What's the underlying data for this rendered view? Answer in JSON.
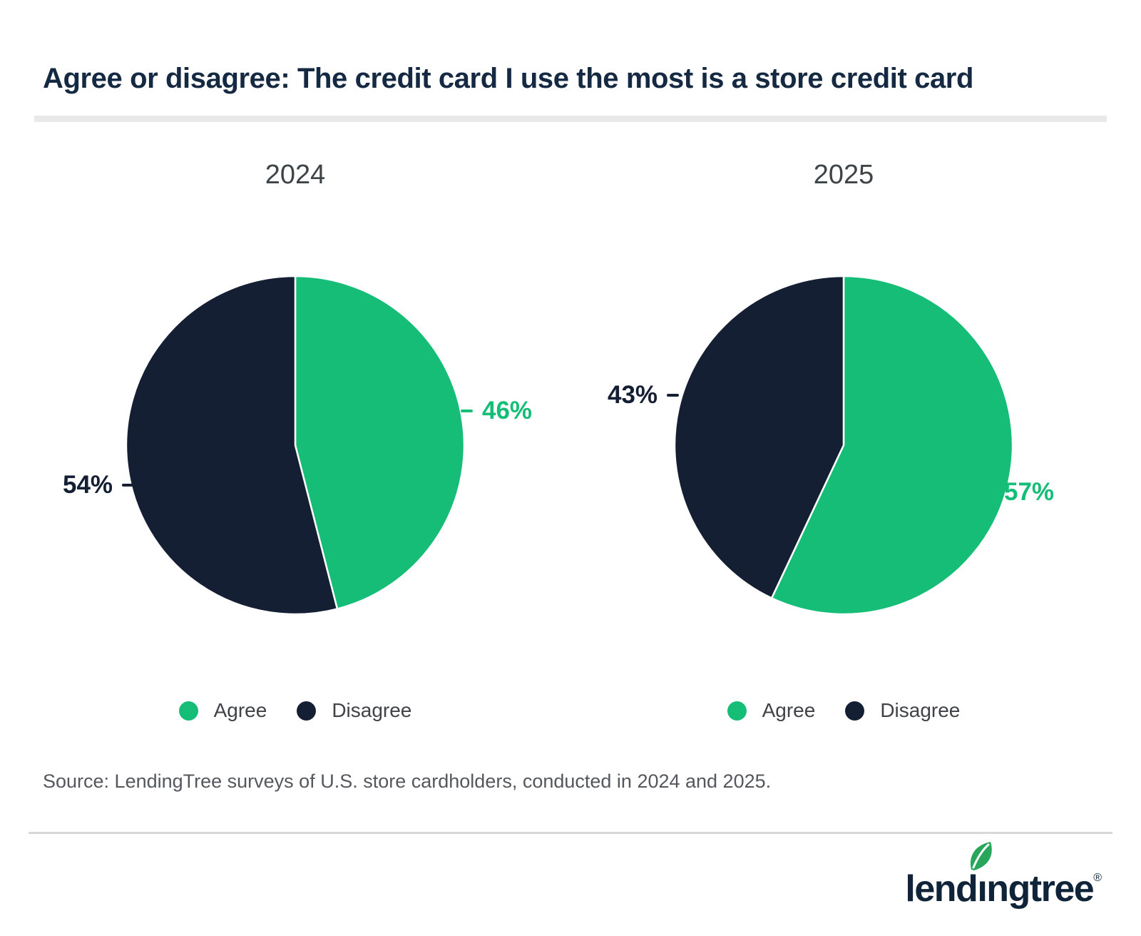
{
  "title": "Agree or disagree: The credit card I use the most is a store credit card",
  "colors": {
    "agree_green": "#16bd77",
    "disagree_navy": "#141f33",
    "title_navy": "#152a42",
    "heading_gray": "#3e4347",
    "legend_gray": "#3f4246",
    "source_gray": "#54585d",
    "divider_gray": "#e9e9e9",
    "rule_gray": "#d8d8d8",
    "leaf_green": "#27a65c",
    "logo_navy": "#0f2439"
  },
  "chart_data": [
    {
      "type": "pie",
      "title": "2024",
      "categories": [
        "Agree",
        "Disagree"
      ],
      "values": [
        46,
        54
      ],
      "unit": "percent",
      "slice_colors": [
        "#16bd77",
        "#141f33"
      ],
      "data_labels": [
        "46%",
        "54%"
      ],
      "start_angle": "12 o'clock",
      "direction": "clockwise",
      "legend_position": "bottom"
    },
    {
      "type": "pie",
      "title": "2025",
      "categories": [
        "Agree",
        "Disagree"
      ],
      "values": [
        57,
        43
      ],
      "unit": "percent",
      "slice_colors": [
        "#16bd77",
        "#141f33"
      ],
      "data_labels": [
        "57%",
        "43%"
      ],
      "start_angle": "12 o'clock",
      "direction": "clockwise",
      "legend_position": "bottom"
    }
  ],
  "source_note": "Source: LendingTree surveys of U.S. store cardholders, conducted in 2024 and 2025.",
  "brand": {
    "wordmark_prefix": "lend",
    "wordmark_i": "ı",
    "wordmark_suffix": "ngtree",
    "registered_mark": "®"
  }
}
